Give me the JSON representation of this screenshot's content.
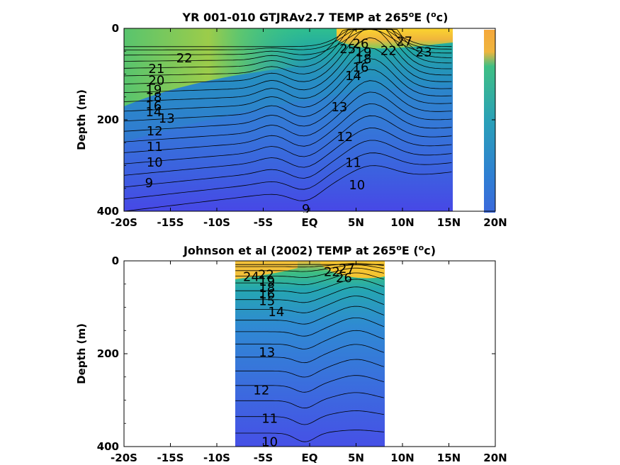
{
  "chart_data": [
    {
      "type": "heatmap",
      "title_prefix": "YR 001-010 GTJRAv2.7 TEMP at 265",
      "title_sup1": "o",
      "title_mid": "E (",
      "title_sup2": "o",
      "title_suffix": "c)",
      "ylabel": "Depth (m)",
      "xlim": [
        -20,
        20
      ],
      "ylim": [
        0,
        400
      ],
      "y_reversed": true,
      "x_ticks": [
        -20,
        -15,
        -10,
        -5,
        0,
        5,
        10,
        15,
        20
      ],
      "x_tick_labels": [
        "-20S",
        "-15S",
        "-10S",
        "-5S",
        "EQ",
        "5N",
        "10N",
        "15N",
        "20N"
      ],
      "y_ticks": [
        0,
        200,
        400
      ],
      "y_tick_labels": [
        "0",
        "200",
        "400"
      ],
      "data_x_range": [
        -20,
        15.3
      ],
      "coastal_strip_x": [
        18.8,
        20
      ],
      "contour_levels": [
        9,
        10,
        11,
        12,
        13,
        14,
        15,
        16,
        17,
        18,
        19,
        20,
        21,
        22,
        23,
        24,
        25,
        26,
        27
      ],
      "contour_labels": [
        {
          "text": "22",
          "x": -13.5,
          "y": 65
        },
        {
          "text": "21",
          "x": -16.5,
          "y": 88
        },
        {
          "text": "20",
          "x": -16.5,
          "y": 114
        },
        {
          "text": "19",
          "x": -16.8,
          "y": 134
        },
        {
          "text": "18",
          "x": -16.8,
          "y": 150
        },
        {
          "text": "16",
          "x": -16.8,
          "y": 170
        },
        {
          "text": "14",
          "x": -16.8,
          "y": 183
        },
        {
          "text": "13",
          "x": -15.4,
          "y": 197
        },
        {
          "text": "12",
          "x": -16.7,
          "y": 225
        },
        {
          "text": "11",
          "x": -16.7,
          "y": 259
        },
        {
          "text": "10",
          "x": -16.7,
          "y": 293
        },
        {
          "text": "9",
          "x": -17.3,
          "y": 338
        },
        {
          "text": "9",
          "x": -0.4,
          "y": 395
        },
        {
          "text": "26",
          "x": 5.5,
          "y": 33
        },
        {
          "text": "27",
          "x": 10.2,
          "y": 29
        },
        {
          "text": "25",
          "x": 4.1,
          "y": 45
        },
        {
          "text": "22",
          "x": 8.5,
          "y": 49
        },
        {
          "text": "23",
          "x": 12.3,
          "y": 52
        },
        {
          "text": "19",
          "x": 5.8,
          "y": 52
        },
        {
          "text": "18",
          "x": 5.8,
          "y": 67
        },
        {
          "text": "16",
          "x": 5.5,
          "y": 85
        },
        {
          "text": "14",
          "x": 4.7,
          "y": 104
        },
        {
          "text": "13",
          "x": 3.2,
          "y": 172
        },
        {
          "text": "12",
          "x": 3.8,
          "y": 237
        },
        {
          "text": "11",
          "x": 4.7,
          "y": 294
        },
        {
          "text": "10",
          "x": 5.1,
          "y": 343
        }
      ]
    },
    {
      "type": "heatmap",
      "title_prefix": "Johnson et al (2002) TEMP at 265",
      "title_sup1": "o",
      "title_mid": "E (",
      "title_sup2": "o",
      "title_suffix": "c)",
      "ylabel": "Depth (m)",
      "xlim": [
        -20,
        20
      ],
      "ylim": [
        0,
        400
      ],
      "y_reversed": true,
      "x_ticks": [
        -20,
        -15,
        -10,
        -5,
        0,
        5,
        10,
        15,
        20
      ],
      "x_tick_labels": [
        "-20S",
        "-15S",
        "-10S",
        "-5S",
        "EQ",
        "5N",
        "10N",
        "15N",
        "20N"
      ],
      "y_ticks": [
        0,
        200,
        400
      ],
      "y_tick_labels": [
        "0",
        "200",
        "400"
      ],
      "data_x_range": [
        -8,
        8
      ],
      "contour_levels": [
        10,
        11,
        12,
        13,
        14,
        15,
        16,
        17,
        18,
        19,
        20,
        21,
        22,
        23,
        24,
        25,
        26,
        27
      ],
      "contour_labels": [
        {
          "text": "24",
          "x": -6.3,
          "y": 34
        },
        {
          "text": "22",
          "x": -4.7,
          "y": 30
        },
        {
          "text": "19",
          "x": -4.6,
          "y": 44
        },
        {
          "text": "18",
          "x": -4.6,
          "y": 58
        },
        {
          "text": "16",
          "x": -4.6,
          "y": 72
        },
        {
          "text": "15",
          "x": -4.6,
          "y": 86
        },
        {
          "text": "14",
          "x": -3.6,
          "y": 110
        },
        {
          "text": "22",
          "x": 2.4,
          "y": 24
        },
        {
          "text": "27",
          "x": 4.0,
          "y": 17
        },
        {
          "text": "26",
          "x": 3.7,
          "y": 37
        },
        {
          "text": "13",
          "x": -4.6,
          "y": 197
        },
        {
          "text": "12",
          "x": -5.2,
          "y": 279
        },
        {
          "text": "11",
          "x": -4.3,
          "y": 340
        },
        {
          "text": "10",
          "x": -4.3,
          "y": 390
        }
      ]
    }
  ]
}
